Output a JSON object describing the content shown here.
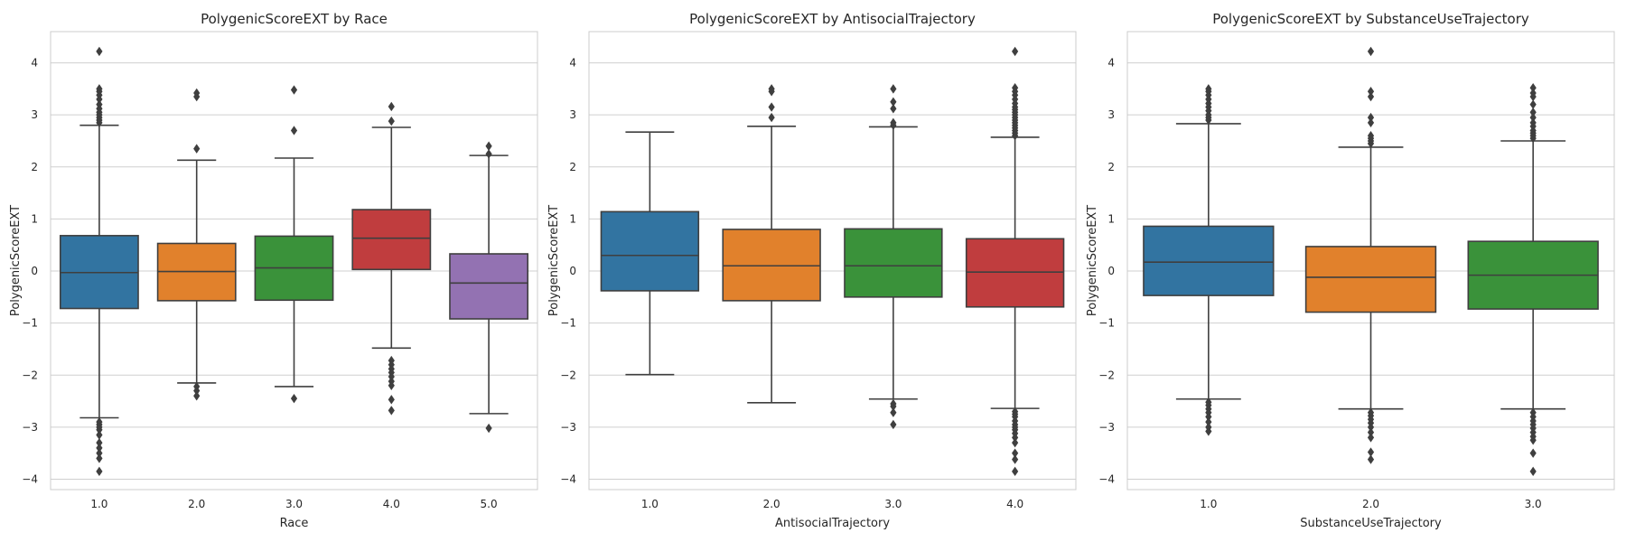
{
  "chart_data": [
    {
      "type": "box",
      "title": "PolygenicScoreEXT by Race",
      "xlabel": "Race",
      "ylabel": "PolygenicScoreEXT",
      "ylim": [
        -4.2,
        4.6
      ],
      "yticks": [
        4,
        3,
        2,
        1,
        0,
        -1,
        -2,
        -3,
        -4
      ],
      "grid": true,
      "categories": [
        "1.0",
        "2.0",
        "3.0",
        "4.0",
        "5.0"
      ],
      "colors": [
        "#3274a1",
        "#e1812c",
        "#3a923a",
        "#c03d3e",
        "#9372b2"
      ],
      "boxes": [
        {
          "q1": -0.72,
          "median": -0.03,
          "q3": 0.68,
          "whisker_low": -2.82,
          "whisker_high": 2.8,
          "outliers_high": [
            4.22,
            3.5,
            3.45,
            3.38,
            3.3,
            3.2,
            3.12,
            3.05,
            3.0,
            2.95,
            2.9,
            2.85
          ],
          "outliers_low": [
            -2.9,
            -2.95,
            -3.0,
            -3.05,
            -3.15,
            -3.3,
            -3.4,
            -3.5,
            -3.6,
            -3.85
          ]
        },
        {
          "q1": -0.57,
          "median": -0.01,
          "q3": 0.53,
          "whisker_low": -2.15,
          "whisker_high": 2.13,
          "outliers_high": [
            3.42,
            3.35,
            2.35
          ],
          "outliers_low": [
            -2.22,
            -2.3,
            -2.4
          ]
        },
        {
          "q1": -0.56,
          "median": 0.06,
          "q3": 0.67,
          "whisker_low": -2.22,
          "whisker_high": 2.17,
          "outliers_high": [
            3.48,
            2.7
          ],
          "outliers_low": [
            -2.45
          ]
        },
        {
          "q1": 0.03,
          "median": 0.63,
          "q3": 1.18,
          "whisker_low": -1.48,
          "whisker_high": 2.76,
          "outliers_high": [
            3.16,
            2.88
          ],
          "outliers_low": [
            -1.72,
            -1.8,
            -1.88,
            -1.95,
            -2.03,
            -2.12,
            -2.2,
            -2.47,
            -2.68
          ]
        },
        {
          "q1": -0.92,
          "median": -0.23,
          "q3": 0.33,
          "whisker_low": -2.74,
          "whisker_high": 2.22,
          "outliers_high": [
            2.4,
            2.25
          ],
          "outliers_low": [
            -3.02
          ]
        }
      ]
    },
    {
      "type": "box",
      "title": "PolygenicScoreEXT by AntisocialTrajectory",
      "xlabel": "AntisocialTrajectory",
      "ylabel": "PolygenicScoreEXT",
      "ylim": [
        -4.2,
        4.6
      ],
      "yticks": [
        4,
        3,
        2,
        1,
        0,
        -1,
        -2,
        -3,
        -4
      ],
      "grid": true,
      "categories": [
        "1.0",
        "2.0",
        "3.0",
        "4.0"
      ],
      "colors": [
        "#3274a1",
        "#e1812c",
        "#3a923a",
        "#c03d3e"
      ],
      "boxes": [
        {
          "q1": -0.38,
          "median": 0.3,
          "q3": 1.14,
          "whisker_low": -1.99,
          "whisker_high": 2.67,
          "outliers_high": [],
          "outliers_low": []
        },
        {
          "q1": -0.57,
          "median": 0.1,
          "q3": 0.8,
          "whisker_low": -2.53,
          "whisker_high": 2.78,
          "outliers_high": [
            3.5,
            3.45,
            3.15,
            2.95
          ],
          "outliers_low": []
        },
        {
          "q1": -0.5,
          "median": 0.1,
          "q3": 0.81,
          "whisker_low": -2.46,
          "whisker_high": 2.77,
          "outliers_high": [
            3.5,
            3.25,
            3.12,
            2.85,
            2.8
          ],
          "outliers_low": [
            -2.55,
            -2.6,
            -2.72,
            -2.95
          ]
        },
        {
          "q1": -0.69,
          "median": -0.02,
          "q3": 0.62,
          "whisker_low": -2.64,
          "whisker_high": 2.57,
          "outliers_high": [
            4.22,
            3.52,
            3.45,
            3.38,
            3.3,
            3.22,
            3.15,
            3.1,
            3.05,
            3.0,
            2.95,
            2.9,
            2.85,
            2.8,
            2.75,
            2.7,
            2.65,
            2.6
          ],
          "outliers_low": [
            -2.7,
            -2.75,
            -2.8,
            -2.88,
            -2.95,
            -3.0,
            -3.05,
            -3.12,
            -3.2,
            -3.3,
            -3.5,
            -3.62,
            -3.85
          ]
        }
      ]
    },
    {
      "type": "box",
      "title": "PolygenicScoreEXT by SubstanceUseTrajectory",
      "xlabel": "SubstanceUseTrajectory",
      "ylabel": "PolygenicScoreEXT",
      "ylim": [
        -4.2,
        4.6
      ],
      "yticks": [
        4,
        3,
        2,
        1,
        0,
        -1,
        -2,
        -3,
        -4
      ],
      "grid": true,
      "categories": [
        "1.0",
        "2.0",
        "3.0"
      ],
      "colors": [
        "#3274a1",
        "#e1812c",
        "#3a923a"
      ],
      "boxes": [
        {
          "q1": -0.47,
          "median": 0.17,
          "q3": 0.86,
          "whisker_low": -2.46,
          "whisker_high": 2.83,
          "outliers_high": [
            3.5,
            3.45,
            3.38,
            3.3,
            3.22,
            3.15,
            3.08,
            3.0,
            2.95,
            2.9
          ],
          "outliers_low": [
            -2.52,
            -2.58,
            -2.65,
            -2.72,
            -2.8,
            -2.9,
            -3.0,
            -3.08
          ]
        },
        {
          "q1": -0.79,
          "median": -0.12,
          "q3": 0.47,
          "whisker_low": -2.65,
          "whisker_high": 2.38,
          "outliers_high": [
            4.22,
            3.45,
            3.35,
            2.95,
            2.85,
            2.6,
            2.55,
            2.5,
            2.45
          ],
          "outliers_low": [
            -2.72,
            -2.78,
            -2.85,
            -2.92,
            -3.0,
            -3.1,
            -3.2,
            -3.48,
            -3.62
          ]
        },
        {
          "q1": -0.73,
          "median": -0.08,
          "q3": 0.57,
          "whisker_low": -2.65,
          "whisker_high": 2.5,
          "outliers_high": [
            3.52,
            3.42,
            3.35,
            3.2,
            3.05,
            2.95,
            2.85,
            2.78,
            2.7,
            2.65,
            2.6,
            2.55
          ],
          "outliers_low": [
            -2.72,
            -2.8,
            -2.88,
            -2.95,
            -3.02,
            -3.1,
            -3.18,
            -3.25,
            -3.5,
            -3.85
          ]
        }
      ]
    }
  ]
}
